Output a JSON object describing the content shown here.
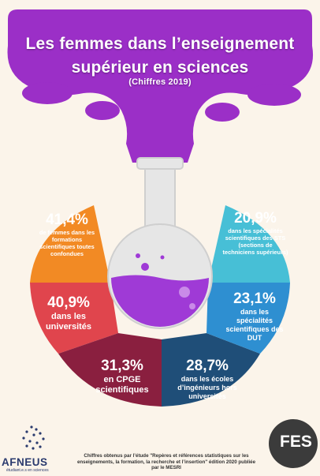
{
  "title": {
    "line1": "Les femmes dans l’enseignement",
    "line2": "supérieur en sciences",
    "subtitle": "(Chiffres 2019)"
  },
  "stats": {
    "s1": {
      "value": "41,4%",
      "desc": "de femmes dans les formations scientifiques toutes confondues",
      "color": "#f28a24"
    },
    "s2": {
      "value": "40,9%",
      "desc": "dans les universités",
      "color": "#e0454d"
    },
    "s3": {
      "value": "31,3%",
      "desc": "en CPGE scientifiques",
      "color": "#8a1f3f"
    },
    "s4": {
      "value": "28,7%",
      "desc": "dans les écoles d’ingénieurs hors universités",
      "color": "#1f4e78"
    },
    "s5": {
      "value": "23,1%",
      "desc": "dans les spécialités scientifiques des DUT",
      "color": "#2e8fd1"
    },
    "s6": {
      "value": "20,9%",
      "desc": "dans les spécialités scientifiques des STS (sections de techniciens supérieurs)",
      "color": "#47bfd6"
    }
  },
  "colors": {
    "smoke": "#9b2fc7",
    "liquid": "#9f3ad6",
    "flask": "#e6e6e6",
    "background": "#fbf4ea"
  },
  "footer": {
    "text": "Chiffres obtenus par l’étude \"Repères et références statistiques sur les enseignements, la formation, la recherche et l’insertion\" édition 2020 publiée par le MESRI"
  },
  "logos": {
    "afneus": "AFNEUS",
    "afneus_sub": "étudiant.e.s en sciences",
    "fes": "FES"
  }
}
